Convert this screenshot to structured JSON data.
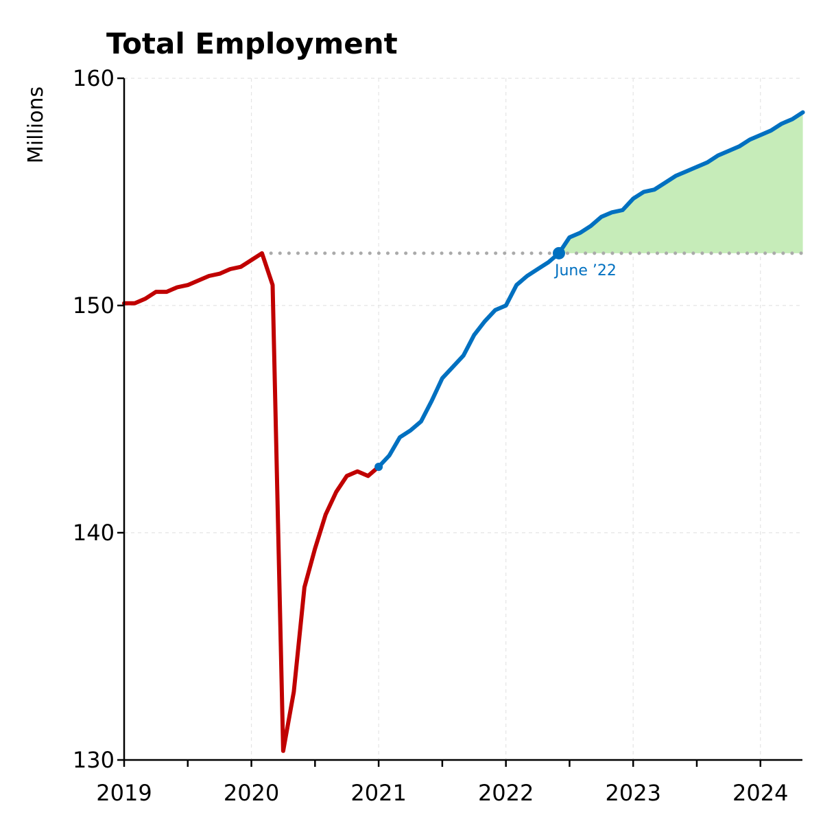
{
  "chart_data": {
    "type": "line",
    "title": "Total Employment",
    "ylabel": "Millions",
    "xlabel": "",
    "ylim": [
      130,
      160
    ],
    "xlim": [
      2019.0,
      2024.33
    ],
    "y_ticks": [
      "130",
      "140",
      "150",
      "160"
    ],
    "x_ticks": [
      "2019",
      "2020",
      "2021",
      "2022",
      "2023",
      "2024"
    ],
    "grid": true,
    "colors": {
      "pre_2021": "#c00000",
      "post_2021": "#0070c0",
      "fill": "#c6ecb9",
      "reference_line": "#aaaaaa",
      "annotation": "#0070c0"
    },
    "reference_level": 152.3,
    "annotation": {
      "text": "June ’22",
      "date": "2022-06",
      "value": 152.3
    },
    "series": [
      {
        "segment": "2019-2020",
        "color": "#c00000",
        "points": [
          [
            "2019-01",
            150.1
          ],
          [
            "2019-02",
            150.1
          ],
          [
            "2019-03",
            150.3
          ],
          [
            "2019-04",
            150.6
          ],
          [
            "2019-05",
            150.6
          ],
          [
            "2019-06",
            150.8
          ],
          [
            "2019-07",
            150.9
          ],
          [
            "2019-08",
            151.1
          ],
          [
            "2019-09",
            151.3
          ],
          [
            "2019-10",
            151.4
          ],
          [
            "2019-11",
            151.6
          ],
          [
            "2019-12",
            151.7
          ],
          [
            "2020-01",
            152.0
          ],
          [
            "2020-02",
            152.3
          ],
          [
            "2020-03",
            150.9
          ],
          [
            "2020-04",
            130.4
          ],
          [
            "2020-05",
            133.0
          ],
          [
            "2020-06",
            137.6
          ],
          [
            "2020-07",
            139.3
          ],
          [
            "2020-08",
            140.8
          ],
          [
            "2020-09",
            141.8
          ],
          [
            "2020-10",
            142.5
          ],
          [
            "2020-11",
            142.7
          ],
          [
            "2020-12",
            142.5
          ],
          [
            "2021-01",
            142.9
          ]
        ]
      },
      {
        "segment": "2021-2024",
        "color": "#0070c0",
        "points": [
          [
            "2021-01",
            142.9
          ],
          [
            "2021-02",
            143.4
          ],
          [
            "2021-03",
            144.2
          ],
          [
            "2021-04",
            144.5
          ],
          [
            "2021-05",
            144.9
          ],
          [
            "2021-06",
            145.8
          ],
          [
            "2021-07",
            146.8
          ],
          [
            "2021-08",
            147.3
          ],
          [
            "2021-09",
            147.8
          ],
          [
            "2021-10",
            148.7
          ],
          [
            "2021-11",
            149.3
          ],
          [
            "2021-12",
            149.8
          ],
          [
            "2022-01",
            150.0
          ],
          [
            "2022-02",
            150.9
          ],
          [
            "2022-03",
            151.3
          ],
          [
            "2022-04",
            151.6
          ],
          [
            "2022-05",
            151.9
          ],
          [
            "2022-06",
            152.3
          ],
          [
            "2022-07",
            153.0
          ],
          [
            "2022-08",
            153.2
          ],
          [
            "2022-09",
            153.5
          ],
          [
            "2022-10",
            153.9
          ],
          [
            "2022-11",
            154.1
          ],
          [
            "2022-12",
            154.2
          ],
          [
            "2023-01",
            154.7
          ],
          [
            "2023-02",
            155.0
          ],
          [
            "2023-03",
            155.1
          ],
          [
            "2023-04",
            155.4
          ],
          [
            "2023-05",
            155.7
          ],
          [
            "2023-06",
            155.9
          ],
          [
            "2023-07",
            156.1
          ],
          [
            "2023-08",
            156.3
          ],
          [
            "2023-09",
            156.6
          ],
          [
            "2023-10",
            156.8
          ],
          [
            "2023-11",
            157.0
          ],
          [
            "2023-12",
            157.3
          ],
          [
            "2024-01",
            157.5
          ],
          [
            "2024-02",
            157.7
          ],
          [
            "2024-03",
            158.0
          ],
          [
            "2024-04",
            158.2
          ],
          [
            "2024-05",
            158.5
          ]
        ]
      }
    ]
  }
}
